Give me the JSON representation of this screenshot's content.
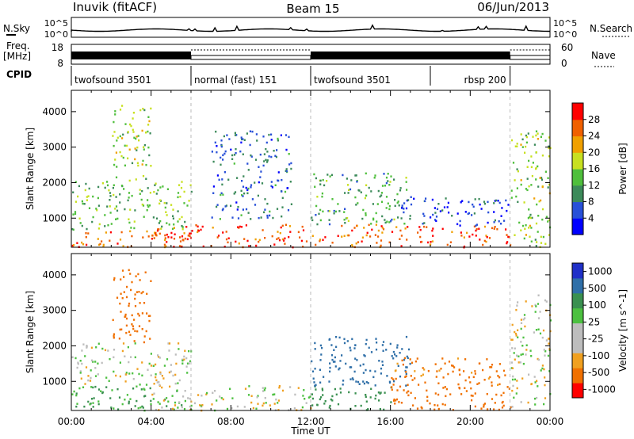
{
  "header": {
    "station": "Inuvik (fitACF)",
    "beam": "Beam 15",
    "date": "06/Jun/2013"
  },
  "aux_panels": {
    "nsky_label": "N.Sky",
    "nsky_ticks": [
      "10^5",
      "10^0"
    ],
    "nsearch_label": "N.Search",
    "nsearch_ticks": [
      "10^5",
      "10^0"
    ],
    "freq_label_top": "Freq.",
    "freq_label_bottom": "[MHz]",
    "freq_ticks": [
      "18",
      "8"
    ],
    "nave_label": "Nave",
    "nave_ticks": [
      "60",
      "0"
    ],
    "cpid_label": "CPID",
    "cpid_segments": [
      {
        "label": "twofsound 3501",
        "start_h": 0,
        "end_h": 6
      },
      {
        "label": "normal (fast) 151",
        "start_h": 6,
        "end_h": 12
      },
      {
        "label": "twofsound 3501",
        "start_h": 12,
        "end_h": 18
      },
      {
        "label": "rbsp 200",
        "start_h": 18,
        "end_h": 22
      }
    ]
  },
  "colors": {
    "power": [
      "#0000ff",
      "#2850d8",
      "#3c8a5a",
      "#4fbf3c",
      "#c8e020",
      "#f0a000",
      "#f06000",
      "#ff0000"
    ],
    "velocity": [
      "#2030c8",
      "#2f6fa8",
      "#3a9050",
      "#4cc040",
      "#bdbdbd",
      "#bdbdbd",
      "#f0a020",
      "#f07000",
      "#ff0000"
    ]
  },
  "chart_data": [
    {
      "type": "heatmap",
      "title": "Power",
      "ylabel": "Slant Range [km]",
      "xlabel": "Time UT",
      "x_ticks": [
        "00:00",
        "04:00",
        "08:00",
        "12:00",
        "16:00",
        "20:00",
        "00:00"
      ],
      "xlim_hours": [
        0,
        24
      ],
      "y_ticks": [
        1000,
        2000,
        3000,
        4000
      ],
      "ylim": [
        180,
        4600
      ],
      "colorbar_label": "Power [dB]",
      "colorbar_ticks": [
        "4",
        "8",
        "12",
        "16",
        "20",
        "24",
        "28"
      ],
      "scatter_regions": [
        {
          "t0": 0.0,
          "t1": 6.0,
          "r0": 200,
          "r1": 700,
          "val": 26
        },
        {
          "t0": 0.0,
          "t1": 6.0,
          "r0": 700,
          "r1": 2100,
          "val": 14
        },
        {
          "t0": 2.0,
          "t1": 4.0,
          "r0": 2100,
          "r1": 4200,
          "val": 16
        },
        {
          "t0": 4.0,
          "t1": 12.0,
          "r0": 200,
          "r1": 850,
          "val": 28
        },
        {
          "t0": 7.0,
          "t1": 11.0,
          "r0": 1000,
          "r1": 3500,
          "val": 8
        },
        {
          "t0": 12.0,
          "t1": 16.0,
          "r0": 200,
          "r1": 850,
          "val": 25
        },
        {
          "t0": 12.0,
          "t1": 17.0,
          "r0": 850,
          "r1": 2300,
          "val": 12
        },
        {
          "t0": 16.0,
          "t1": 22.0,
          "r0": 200,
          "r1": 800,
          "val": 27
        },
        {
          "t0": 16.0,
          "t1": 22.0,
          "r0": 800,
          "r1": 1600,
          "val": 6
        },
        {
          "t0": 22.0,
          "t1": 24.0,
          "r0": 200,
          "r1": 3500,
          "val": 16
        }
      ]
    },
    {
      "type": "heatmap",
      "title": "Velocity",
      "ylabel": "Slant Range [km]",
      "xlabel": "Time UT",
      "x_ticks": [
        "00:00",
        "04:00",
        "08:00",
        "12:00",
        "16:00",
        "20:00",
        "00:00"
      ],
      "xlim_hours": [
        0,
        24
      ],
      "y_ticks": [
        1000,
        2000,
        3000,
        4000
      ],
      "ylim": [
        180,
        4600
      ],
      "colorbar_label": "Velocity [m s^-1]",
      "colorbar_ticks": [
        "1000",
        "500",
        "100",
        "25",
        "-25",
        "-100",
        "-500",
        "-1000"
      ],
      "scatter_regions": [
        {
          "t0": 0.0,
          "t1": 6.0,
          "r0": 200,
          "r1": 900,
          "val": 100
        },
        {
          "t0": 0.0,
          "t1": 6.0,
          "r0": 900,
          "r1": 2100,
          "val": 0
        },
        {
          "t0": 2.0,
          "t1": 4.0,
          "r0": 2100,
          "r1": 4200,
          "val": -200
        },
        {
          "t0": 4.0,
          "t1": 12.0,
          "r0": 200,
          "r1": 900,
          "val": 0
        },
        {
          "t0": 12.0,
          "t1": 16.0,
          "r0": 200,
          "r1": 900,
          "val": 400
        },
        {
          "t0": 12.0,
          "t1": 17.0,
          "r0": 900,
          "r1": 2300,
          "val": 600
        },
        {
          "t0": 16.0,
          "t1": 22.0,
          "r0": 200,
          "r1": 900,
          "val": -300
        },
        {
          "t0": 16.0,
          "t1": 22.0,
          "r0": 900,
          "r1": 1700,
          "val": -150
        },
        {
          "t0": 22.0,
          "t1": 24.0,
          "r0": 300,
          "r1": 3500,
          "val": 0
        }
      ]
    }
  ]
}
